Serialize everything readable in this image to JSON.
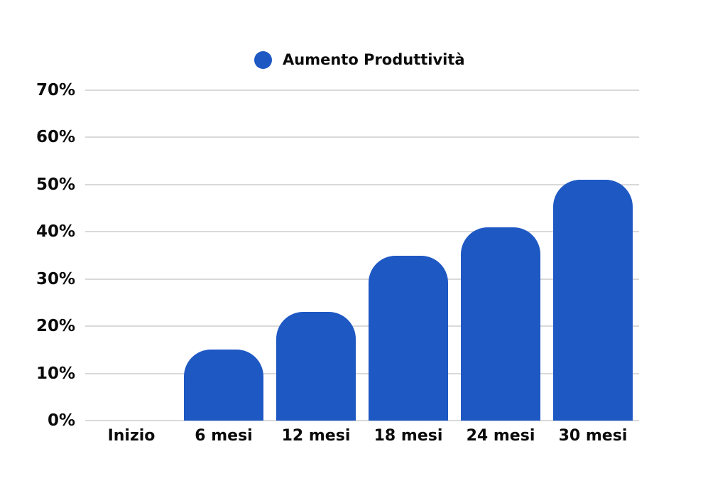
{
  "legend": {
    "label": "Aumento Produttività"
  },
  "colors": {
    "bar": "#1e58c3",
    "grid": "#d9d9d9",
    "text": "#0b0b0b",
    "background": "#ffffff"
  },
  "chart_data": {
    "type": "bar",
    "categories": [
      "Inizio",
      "6 mesi",
      "12 mesi",
      "18 mesi",
      "24 mesi",
      "30 mesi"
    ],
    "series": [
      {
        "name": "Aumento Produttività",
        "values": [
          0,
          15,
          23,
          35,
          41,
          51
        ],
        "color": "#1e58c3"
      }
    ],
    "title": "",
    "xlabel": "",
    "ylabel": "",
    "ylim": [
      0,
      70
    ],
    "ytick_step": 10,
    "ytick_suffix": "%",
    "grid": true,
    "legend_position": "top"
  }
}
